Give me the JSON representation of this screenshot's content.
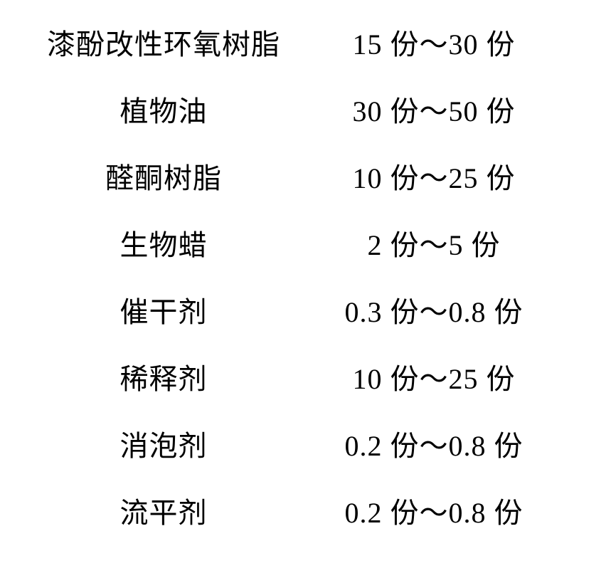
{
  "table": {
    "rows": [
      {
        "label": "漆酚改性环氧树脂",
        "value": "15 份～30 份"
      },
      {
        "label": "植物油",
        "value": "30 份～50 份"
      },
      {
        "label": "醛酮树脂",
        "value": "10 份～25 份"
      },
      {
        "label": "生物蜡",
        "value": "2 份～5 份"
      },
      {
        "label": "催干剂",
        "value": "0.3 份～0.8 份"
      },
      {
        "label": "稀释剂",
        "value": "10 份～25 份"
      },
      {
        "label": "消泡剂",
        "value": "0.2 份～0.8 份"
      },
      {
        "label": "流平剂",
        "value": "0.2 份～0.8 份"
      }
    ],
    "label_fontsize": 40,
    "value_fontsize": 40,
    "text_color": "#000000",
    "background_color": "#ffffff",
    "row_spacing": 36
  }
}
